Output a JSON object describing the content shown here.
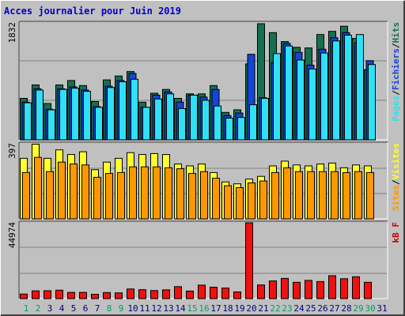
{
  "title": "Acces journalier pour Juin 2019",
  "colors": {
    "background": "#c0c0c0",
    "border": "#000000",
    "grid": "#808080",
    "hits": "#157050",
    "files": "#1444d8",
    "pages": "#2fe0f6",
    "visits": "#ffff30",
    "sites": "#ff9800",
    "kb": "#f01010",
    "title": "#0000cc",
    "weekend": "#00a060",
    "weekday": "#000080",
    "kb_label": "#cc0000"
  },
  "chart_data": [
    {
      "type": "bar",
      "name": "hits-files-pages",
      "categories": [
        "1",
        "2",
        "3",
        "4",
        "5",
        "6",
        "7",
        "8",
        "9",
        "10",
        "11",
        "12",
        "13",
        "14",
        "15",
        "16",
        "17",
        "18",
        "19",
        "20",
        "21",
        "22",
        "23",
        "24",
        "25",
        "26",
        "27",
        "28",
        "29",
        "30"
      ],
      "ymax": 1832,
      "ytick_label": "1832",
      "axis_label_parts": [
        "Pages",
        "/",
        "Fichiers",
        "/",
        "Hits"
      ],
      "series": [
        {
          "name": "Hits",
          "values": [
            650,
            860,
            570,
            860,
            930,
            850,
            600,
            940,
            1000,
            1070,
            590,
            730,
            790,
            650,
            720,
            720,
            850,
            430,
            470,
            1190,
            1820,
            1680,
            1540,
            1450,
            1440,
            1650,
            1700,
            1780,
            1590,
            1100
          ]
        },
        {
          "name": "Fichiers",
          "values": [
            590,
            800,
            480,
            800,
            830,
            780,
            520,
            840,
            930,
            1040,
            510,
            700,
            750,
            590,
            700,
            670,
            790,
            380,
            420,
            1340,
            660,
            1210,
            1510,
            1370,
            1170,
            1420,
            1600,
            1680,
            1520,
            1240
          ]
        },
        {
          "name": "Pages",
          "values": [
            580,
            780,
            470,
            790,
            810,
            760,
            510,
            820,
            910,
            950,
            510,
            640,
            720,
            490,
            700,
            620,
            530,
            340,
            350,
            550,
            650,
            1350,
            1470,
            1250,
            1110,
            1360,
            1550,
            1640,
            1650,
            1180
          ]
        }
      ]
    },
    {
      "type": "bar",
      "name": "visits-sites",
      "categories": [
        "1",
        "2",
        "3",
        "4",
        "5",
        "6",
        "7",
        "8",
        "9",
        "10",
        "11",
        "12",
        "13",
        "14",
        "15",
        "16",
        "17",
        "18",
        "19",
        "20",
        "21",
        "22",
        "23",
        "24",
        "25",
        "26",
        "27",
        "28",
        "29",
        "30"
      ],
      "ymax": 397,
      "ytick_label": "397",
      "axis_label_parts": [
        "Sites",
        "/",
        "Visites"
      ],
      "series": [
        {
          "name": "Visites",
          "values": [
            320,
            395,
            320,
            365,
            340,
            355,
            260,
            300,
            320,
            350,
            340,
            345,
            340,
            290,
            280,
            290,
            245,
            195,
            185,
            210,
            225,
            280,
            305,
            285,
            280,
            290,
            295,
            270,
            285,
            280
          ]
        },
        {
          "name": "Sites",
          "values": [
            245,
            325,
            250,
            300,
            290,
            285,
            220,
            240,
            245,
            275,
            275,
            275,
            270,
            265,
            240,
            250,
            215,
            175,
            165,
            190,
            200,
            245,
            270,
            250,
            250,
            250,
            250,
            245,
            250,
            245
          ]
        }
      ]
    },
    {
      "type": "bar",
      "name": "kb",
      "categories": [
        "1",
        "2",
        "3",
        "4",
        "5",
        "6",
        "7",
        "8",
        "9",
        "10",
        "11",
        "12",
        "13",
        "14",
        "15",
        "16",
        "17",
        "18",
        "19",
        "20",
        "21",
        "22",
        "23",
        "24",
        "25",
        "26",
        "27",
        "28",
        "29",
        "30"
      ],
      "ymax": 44974,
      "ytick_label": "44974",
      "axis_label": "kB F",
      "series": [
        {
          "name": "kB F",
          "values": [
            2700,
            4600,
            4700,
            5000,
            3700,
            3700,
            2600,
            3600,
            3400,
            5700,
            5300,
            4800,
            5200,
            7100,
            4500,
            8000,
            6800,
            6300,
            4000,
            44974,
            8100,
            10500,
            12000,
            9700,
            10800,
            10100,
            13600,
            11800,
            13000,
            9700
          ]
        }
      ]
    }
  ],
  "x_labels": [
    "1",
    "2",
    "3",
    "4",
    "5",
    "6",
    "7",
    "8",
    "9",
    "10",
    "11",
    "12",
    "13",
    "14",
    "15",
    "16",
    "17",
    "18",
    "19",
    "20",
    "21",
    "22",
    "23",
    "24",
    "25",
    "26",
    "27",
    "28",
    "29",
    "30",
    "31"
  ],
  "weekend_days": [
    "1",
    "2",
    "8",
    "9",
    "15",
    "16",
    "22",
    "23",
    "29",
    "30"
  ]
}
